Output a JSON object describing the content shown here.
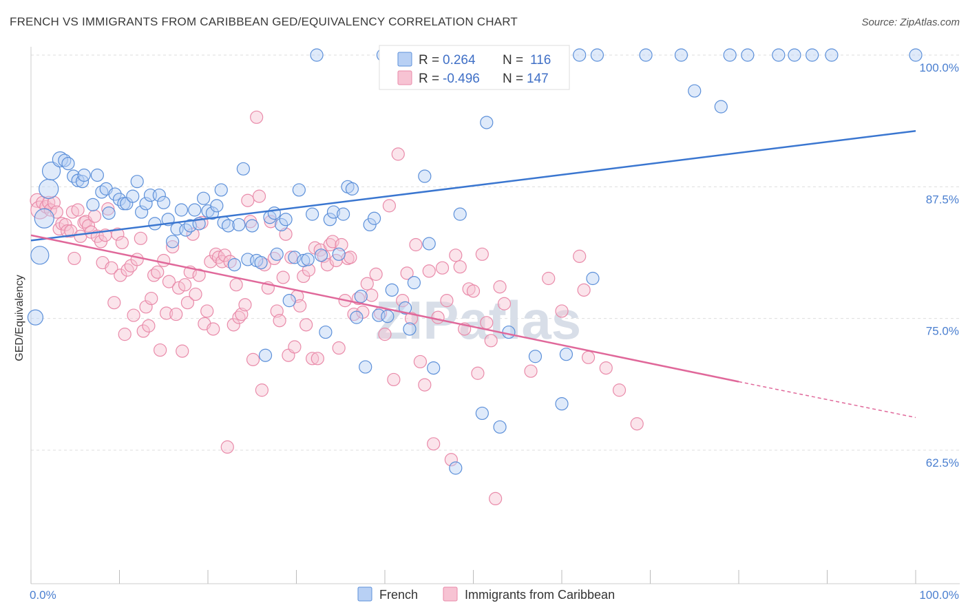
{
  "header": {
    "title": "FRENCH VS IMMIGRANTS FROM CARIBBEAN GED/EQUIVALENCY CORRELATION CHART",
    "source": "Source: ZipAtlas.com"
  },
  "watermark": "ZIPatlas",
  "colors": {
    "french_fill": "#b8d0f4",
    "french_stroke": "#5b8fd9",
    "french_line": "#3a76d0",
    "carib_fill": "#f7c3d3",
    "carib_stroke": "#e98aa9",
    "carib_line": "#e0689a",
    "tick_text": "#4a7fd0",
    "grid": "#dddddd"
  },
  "legend": {
    "rows": [
      {
        "r_label": "R =",
        "r_value": "0.264",
        "n_label": "N =",
        "n_value": "116"
      },
      {
        "r_label": "R =",
        "r_value": "-0.496",
        "n_label": "N =",
        "n_value": "147"
      }
    ]
  },
  "bottom_legend": [
    "French",
    "Immigrants from Caribbean"
  ],
  "chart_data": {
    "type": "scatter",
    "title": "FRENCH VS IMMIGRANTS FROM CARIBBEAN GED/EQUIVALENCY CORRELATION CHART",
    "xlabel": "",
    "ylabel": "GED/Equivalency",
    "xlim": [
      0,
      100
    ],
    "ylim": [
      50,
      101
    ],
    "x_tick_labels": [
      "0.0%",
      "100.0%"
    ],
    "y_ticks": [
      62.5,
      75.0,
      87.5,
      100.0
    ],
    "y_tick_labels": [
      "62.5%",
      "75.0%",
      "87.5%",
      "100.0%"
    ],
    "grid": true,
    "legend_position": "top-center",
    "series": [
      {
        "name": "French",
        "r": 0.264,
        "n": 116,
        "trend": {
          "x": [
            0,
            100
          ],
          "y": [
            82.4,
            92.8
          ]
        },
        "points": [
          [
            0.5,
            75.1
          ],
          [
            1.0,
            81.0
          ],
          [
            1.5,
            84.5
          ],
          [
            2.0,
            87.3
          ],
          [
            2.3,
            89.0
          ],
          [
            3.3,
            90.1
          ],
          [
            3.8,
            90.0
          ],
          [
            4.2,
            89.7
          ],
          [
            4.8,
            88.5
          ],
          [
            5.3,
            88.1
          ],
          [
            5.8,
            88.0
          ],
          [
            6.0,
            88.6
          ],
          [
            7.0,
            85.8
          ],
          [
            7.5,
            88.6
          ],
          [
            8.0,
            87.0
          ],
          [
            8.5,
            87.3
          ],
          [
            8.8,
            85.0
          ],
          [
            9.5,
            86.8
          ],
          [
            10.0,
            86.3
          ],
          [
            10.5,
            85.9
          ],
          [
            10.8,
            85.9
          ],
          [
            11.5,
            86.6
          ],
          [
            12.0,
            88.0
          ],
          [
            12.5,
            85.1
          ],
          [
            13.0,
            85.9
          ],
          [
            13.5,
            86.7
          ],
          [
            14.0,
            84.0
          ],
          [
            14.5,
            86.7
          ],
          [
            15.0,
            86.0
          ],
          [
            15.5,
            84.4
          ],
          [
            16.0,
            82.3
          ],
          [
            16.5,
            83.5
          ],
          [
            17.0,
            85.3
          ],
          [
            17.5,
            83.4
          ],
          [
            18.0,
            83.8
          ],
          [
            18.5,
            85.3
          ],
          [
            19.0,
            84.0
          ],
          [
            19.5,
            86.4
          ],
          [
            20.0,
            85.2
          ],
          [
            20.5,
            85.0
          ],
          [
            21.0,
            85.7
          ],
          [
            21.5,
            87.2
          ],
          [
            21.8,
            84.1
          ],
          [
            22.3,
            83.8
          ],
          [
            23.0,
            80.1
          ],
          [
            23.5,
            83.9
          ],
          [
            24.0,
            89.2
          ],
          [
            24.5,
            80.6
          ],
          [
            25.0,
            83.8
          ],
          [
            25.5,
            80.5
          ],
          [
            26.0,
            80.3
          ],
          [
            26.5,
            71.5
          ],
          [
            27.0,
            84.6
          ],
          [
            27.5,
            85.0
          ],
          [
            27.8,
            81.1
          ],
          [
            28.3,
            83.9
          ],
          [
            28.8,
            84.4
          ],
          [
            29.2,
            76.7
          ],
          [
            29.8,
            80.8
          ],
          [
            30.3,
            87.2
          ],
          [
            30.8,
            80.5
          ],
          [
            31.3,
            80.6
          ],
          [
            31.8,
            84.9
          ],
          [
            32.3,
            100.0
          ],
          [
            32.8,
            81.0
          ],
          [
            33.3,
            73.7
          ],
          [
            33.8,
            84.4
          ],
          [
            34.2,
            85.1
          ],
          [
            34.8,
            81.1
          ],
          [
            35.3,
            84.9
          ],
          [
            35.8,
            87.5
          ],
          [
            36.3,
            87.3
          ],
          [
            36.8,
            75.1
          ],
          [
            37.3,
            77.1
          ],
          [
            37.8,
            70.4
          ],
          [
            38.3,
            83.9
          ],
          [
            38.8,
            84.5
          ],
          [
            39.3,
            75.3
          ],
          [
            39.8,
            100.0
          ],
          [
            40.3,
            75.2
          ],
          [
            40.8,
            77.7
          ],
          [
            41.2,
            100.0
          ],
          [
            41.8,
            100.0
          ],
          [
            42.3,
            76.0
          ],
          [
            42.8,
            74.0
          ],
          [
            43.3,
            78.4
          ],
          [
            44.0,
            100.0
          ],
          [
            44.5,
            88.5
          ],
          [
            45.0,
            82.1
          ],
          [
            45.5,
            70.3
          ],
          [
            46.5,
            100.0
          ],
          [
            47.0,
            98.0
          ],
          [
            48.0,
            60.8
          ],
          [
            48.5,
            84.9
          ],
          [
            49.5,
            100.0
          ],
          [
            51.0,
            66.0
          ],
          [
            51.5,
            93.6
          ],
          [
            52.0,
            100.0
          ],
          [
            53.0,
            64.7
          ],
          [
            54.0,
            73.7
          ],
          [
            55.5,
            100.0
          ],
          [
            57.0,
            71.4
          ],
          [
            57.5,
            100.0
          ],
          [
            58.5,
            100.0
          ],
          [
            60.0,
            66.9
          ],
          [
            60.5,
            71.6
          ],
          [
            62.0,
            100.0
          ],
          [
            63.5,
            78.8
          ],
          [
            64.0,
            100.0
          ],
          [
            69.5,
            100.0
          ],
          [
            73.5,
            100.0
          ],
          [
            75.0,
            96.6
          ],
          [
            78.0,
            95.1
          ],
          [
            79.0,
            100.0
          ],
          [
            81.0,
            100.0
          ],
          [
            84.5,
            100.0
          ],
          [
            86.3,
            100.0
          ],
          [
            88.3,
            100.0
          ],
          [
            90.5,
            100.0
          ],
          [
            100.0,
            100.0
          ]
        ]
      },
      {
        "name": "Immigrants from Caribbean",
        "r": -0.496,
        "n": 147,
        "trend": {
          "x": [
            0,
            80
          ],
          "y": [
            82.9,
            69.0
          ]
        },
        "trend_dashed": {
          "x": [
            80,
            100
          ],
          "y": [
            69.0,
            65.6
          ]
        },
        "points": [
          [
            0.7,
            86.2
          ],
          [
            1.0,
            85.3
          ],
          [
            1.3,
            86.0
          ],
          [
            1.7,
            85.6
          ],
          [
            2.0,
            86.0
          ],
          [
            2.2,
            85.3
          ],
          [
            2.6,
            86.0
          ],
          [
            2.9,
            85.1
          ],
          [
            3.2,
            83.5
          ],
          [
            3.5,
            84.0
          ],
          [
            3.9,
            83.9
          ],
          [
            4.1,
            83.3
          ],
          [
            4.5,
            83.3
          ],
          [
            4.7,
            85.1
          ],
          [
            4.9,
            80.7
          ],
          [
            5.3,
            85.3
          ],
          [
            5.6,
            82.8
          ],
          [
            6.0,
            84.1
          ],
          [
            6.2,
            84.2
          ],
          [
            6.5,
            83.8
          ],
          [
            6.8,
            83.2
          ],
          [
            7.2,
            84.7
          ],
          [
            7.5,
            82.8
          ],
          [
            7.9,
            82.3
          ],
          [
            8.1,
            80.3
          ],
          [
            8.4,
            82.9
          ],
          [
            8.7,
            85.4
          ],
          [
            9.1,
            79.8
          ],
          [
            9.4,
            76.5
          ],
          [
            9.8,
            83.0
          ],
          [
            10.1,
            79.1
          ],
          [
            10.3,
            82.2
          ],
          [
            10.6,
            73.5
          ],
          [
            10.9,
            79.6
          ],
          [
            11.3,
            80.0
          ],
          [
            11.6,
            75.3
          ],
          [
            12.0,
            80.6
          ],
          [
            12.4,
            82.6
          ],
          [
            12.7,
            73.8
          ],
          [
            13.0,
            76.1
          ],
          [
            13.3,
            74.3
          ],
          [
            13.6,
            76.9
          ],
          [
            13.9,
            79.1
          ],
          [
            14.3,
            79.4
          ],
          [
            14.6,
            72.0
          ],
          [
            15.0,
            80.5
          ],
          [
            15.3,
            75.5
          ],
          [
            15.6,
            78.5
          ],
          [
            16.0,
            81.8
          ],
          [
            16.4,
            75.4
          ],
          [
            16.7,
            77.9
          ],
          [
            17.1,
            71.9
          ],
          [
            17.4,
            78.2
          ],
          [
            17.7,
            76.5
          ],
          [
            18.0,
            79.4
          ],
          [
            18.3,
            83.0
          ],
          [
            18.6,
            77.3
          ],
          [
            19.0,
            79.1
          ],
          [
            19.3,
            84.1
          ],
          [
            19.6,
            74.5
          ],
          [
            19.9,
            75.7
          ],
          [
            20.3,
            80.4
          ],
          [
            20.6,
            74.0
          ],
          [
            20.9,
            81.1
          ],
          [
            21.2,
            80.8
          ],
          [
            21.6,
            80.4
          ],
          [
            21.9,
            81.0
          ],
          [
            22.2,
            62.8
          ],
          [
            22.5,
            80.4
          ],
          [
            22.9,
            74.4
          ],
          [
            23.2,
            78.2
          ],
          [
            23.5,
            75.1
          ],
          [
            23.8,
            75.4
          ],
          [
            24.2,
            76.3
          ],
          [
            24.5,
            86.2
          ],
          [
            24.8,
            84.2
          ],
          [
            25.1,
            71.1
          ],
          [
            25.5,
            94.1
          ],
          [
            25.8,
            86.6
          ],
          [
            26.1,
            68.2
          ],
          [
            26.4,
            80.1
          ],
          [
            26.8,
            77.9
          ],
          [
            27.1,
            84.2
          ],
          [
            27.5,
            80.7
          ],
          [
            27.8,
            75.7
          ],
          [
            28.1,
            74.8
          ],
          [
            28.5,
            78.9
          ],
          [
            28.8,
            83.0
          ],
          [
            29.1,
            71.5
          ],
          [
            29.4,
            80.8
          ],
          [
            29.8,
            72.3
          ],
          [
            30.1,
            77.1
          ],
          [
            30.4,
            76.2
          ],
          [
            30.8,
            79.0
          ],
          [
            31.1,
            74.4
          ],
          [
            31.4,
            79.6
          ],
          [
            31.8,
            71.2
          ],
          [
            32.1,
            81.7
          ],
          [
            32.4,
            71.2
          ],
          [
            32.7,
            81.5
          ],
          [
            33.1,
            80.9
          ],
          [
            33.5,
            80.1
          ],
          [
            33.8,
            82.0
          ],
          [
            34.1,
            82.3
          ],
          [
            34.5,
            80.5
          ],
          [
            34.8,
            72.2
          ],
          [
            35.1,
            82.0
          ],
          [
            35.5,
            76.7
          ],
          [
            35.8,
            80.7
          ],
          [
            36.1,
            80.8
          ],
          [
            36.5,
            75.4
          ],
          [
            37.0,
            76.9
          ],
          [
            37.5,
            75.6
          ],
          [
            38.0,
            78.3
          ],
          [
            38.5,
            77.2
          ],
          [
            39.0,
            79.2
          ],
          [
            39.5,
            75.5
          ],
          [
            40.0,
            73.5
          ],
          [
            40.5,
            85.7
          ],
          [
            41.0,
            69.2
          ],
          [
            41.5,
            90.6
          ],
          [
            42.0,
            76.7
          ],
          [
            42.5,
            79.3
          ],
          [
            43.0,
            75.0
          ],
          [
            43.5,
            82.0
          ],
          [
            44.0,
            70.9
          ],
          [
            44.5,
            68.7
          ],
          [
            45.0,
            79.5
          ],
          [
            45.5,
            63.1
          ],
          [
            46.0,
            75.1
          ],
          [
            46.5,
            79.8
          ],
          [
            47.0,
            76.7
          ],
          [
            47.5,
            61.6
          ],
          [
            48.0,
            81.0
          ],
          [
            48.5,
            79.9
          ],
          [
            49.0,
            74.0
          ],
          [
            49.5,
            77.8
          ],
          [
            50.0,
            77.6
          ],
          [
            50.5,
            69.8
          ],
          [
            51.0,
            81.1
          ],
          [
            51.5,
            74.6
          ],
          [
            52.0,
            72.9
          ],
          [
            52.5,
            57.9
          ],
          [
            53.0,
            78.0
          ],
          [
            53.5,
            76.4
          ],
          [
            56.5,
            70.0
          ],
          [
            58.5,
            78.8
          ],
          [
            60.0,
            75.7
          ],
          [
            62.0,
            80.9
          ],
          [
            62.5,
            77.7
          ],
          [
            63.0,
            71.3
          ],
          [
            65.0,
            70.3
          ],
          [
            66.5,
            68.2
          ],
          [
            68.5,
            65.0
          ]
        ]
      }
    ]
  }
}
